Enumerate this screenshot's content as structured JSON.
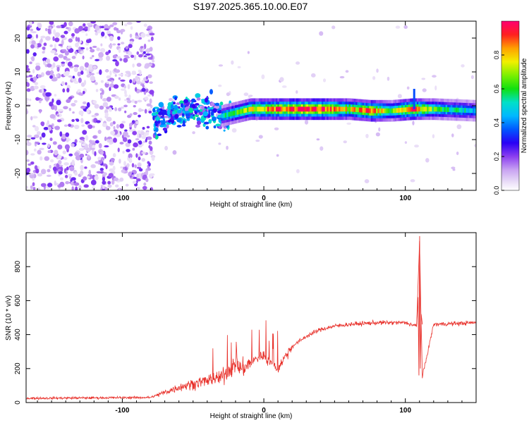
{
  "title": "S197.2025.365.10.00.E07",
  "chart_data": [
    {
      "type": "heatmap",
      "xlabel": "Height of straight line (km)",
      "ylabel": "Frequency (Hz)",
      "xlim": [
        -168,
        150
      ],
      "ylim": [
        -25,
        25
      ],
      "xticks": [
        -100,
        0,
        100
      ],
      "xtick_labels": [
        "-100",
        "0",
        "100"
      ],
      "yticks": [
        -20,
        -10,
        0,
        10,
        20
      ],
      "ytick_labels": [
        "-20",
        "-10",
        "0",
        "10",
        "20"
      ],
      "colorbar": {
        "label": "Normalized spectral amplitude",
        "range": [
          0,
          1
        ],
        "ticks": [
          0,
          0.2,
          0.4,
          0.6,
          0.8
        ],
        "tick_labels": [
          "0.0",
          "0.2",
          "0.4",
          "0.6",
          "0.8"
        ]
      },
      "ridge": {
        "x": [
          -75,
          -60,
          -45,
          -30,
          -20,
          -10,
          0,
          20,
          40,
          60,
          75,
          90,
          105,
          120,
          150
        ],
        "frequency": [
          -4,
          -2,
          -1,
          -3,
          -2,
          -1,
          -1,
          -1,
          -1,
          -1,
          -1.5,
          -1.5,
          -1,
          -1,
          -1.5
        ],
        "amplitude": [
          0.25,
          0.3,
          0.35,
          0.5,
          0.6,
          0.75,
          0.8,
          0.95,
          0.95,
          0.75,
          0.9,
          0.6,
          0.95,
          0.6,
          0.45
        ]
      },
      "noise_region_x": [
        -168,
        -78
      ]
    },
    {
      "type": "line",
      "xlabel": "Height of straight line (km)",
      "ylabel": "SNR (10 * v/v)",
      "xlim": [
        -168,
        150
      ],
      "ylim": [
        0,
        1000
      ],
      "xticks": [
        -100,
        0,
        100
      ],
      "xtick_labels": [
        "-100",
        "0",
        "100"
      ],
      "yticks": [
        0,
        200,
        400,
        600,
        800
      ],
      "ytick_labels": [
        "0",
        "200",
        "400",
        "600",
        "800"
      ],
      "color": "#e8302a",
      "series": [
        {
          "name": "SNR",
          "x": [
            -168,
            -80,
            -70,
            -60,
            -50,
            -40,
            -30,
            -25,
            -20,
            -15,
            -10,
            -5,
            0,
            5,
            10,
            15,
            20,
            30,
            40,
            50,
            60,
            80,
            100,
            108,
            110,
            112,
            120,
            150
          ],
          "y": [
            25,
            30,
            60,
            90,
            110,
            130,
            150,
            190,
            220,
            200,
            230,
            260,
            280,
            230,
            200,
            270,
            330,
            390,
            430,
            450,
            460,
            470,
            470,
            450,
            950,
            150,
            460,
            470
          ]
        }
      ]
    }
  ]
}
